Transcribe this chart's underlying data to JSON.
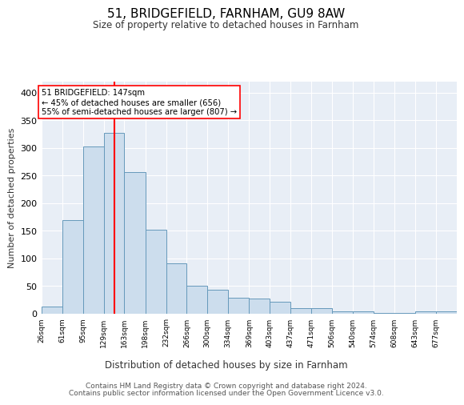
{
  "title": "51, BRIDGEFIELD, FARNHAM, GU9 8AW",
  "subtitle": "Size of property relative to detached houses in Farnham",
  "xlabel": "Distribution of detached houses by size in Farnham",
  "ylabel": "Number of detached properties",
  "bar_color": "#ccdded",
  "bar_edge_color": "#6699bb",
  "background_color": "#e8eef6",
  "grid_color": "#ffffff",
  "red_line_x": 147,
  "annotation_line1": "51 BRIDGEFIELD: 147sqm",
  "annotation_line2": "← 45% of detached houses are smaller (656)",
  "annotation_line3": "55% of semi-detached houses are larger (807) →",
  "footer_line1": "Contains HM Land Registry data © Crown copyright and database right 2024.",
  "footer_line2": "Contains public sector information licensed under the Open Government Licence v3.0.",
  "bin_edges": [
    26,
    61,
    95,
    129,
    163,
    198,
    232,
    266,
    300,
    334,
    369,
    403,
    437,
    471,
    506,
    540,
    574,
    608,
    643,
    677,
    711
  ],
  "bar_heights": [
    13,
    170,
    302,
    328,
    257,
    152,
    91,
    50,
    43,
    29,
    27,
    22,
    10,
    10,
    5,
    4,
    2,
    2,
    4,
    4
  ],
  "ylim": [
    0,
    420
  ],
  "yticks": [
    0,
    50,
    100,
    150,
    200,
    250,
    300,
    350,
    400
  ]
}
